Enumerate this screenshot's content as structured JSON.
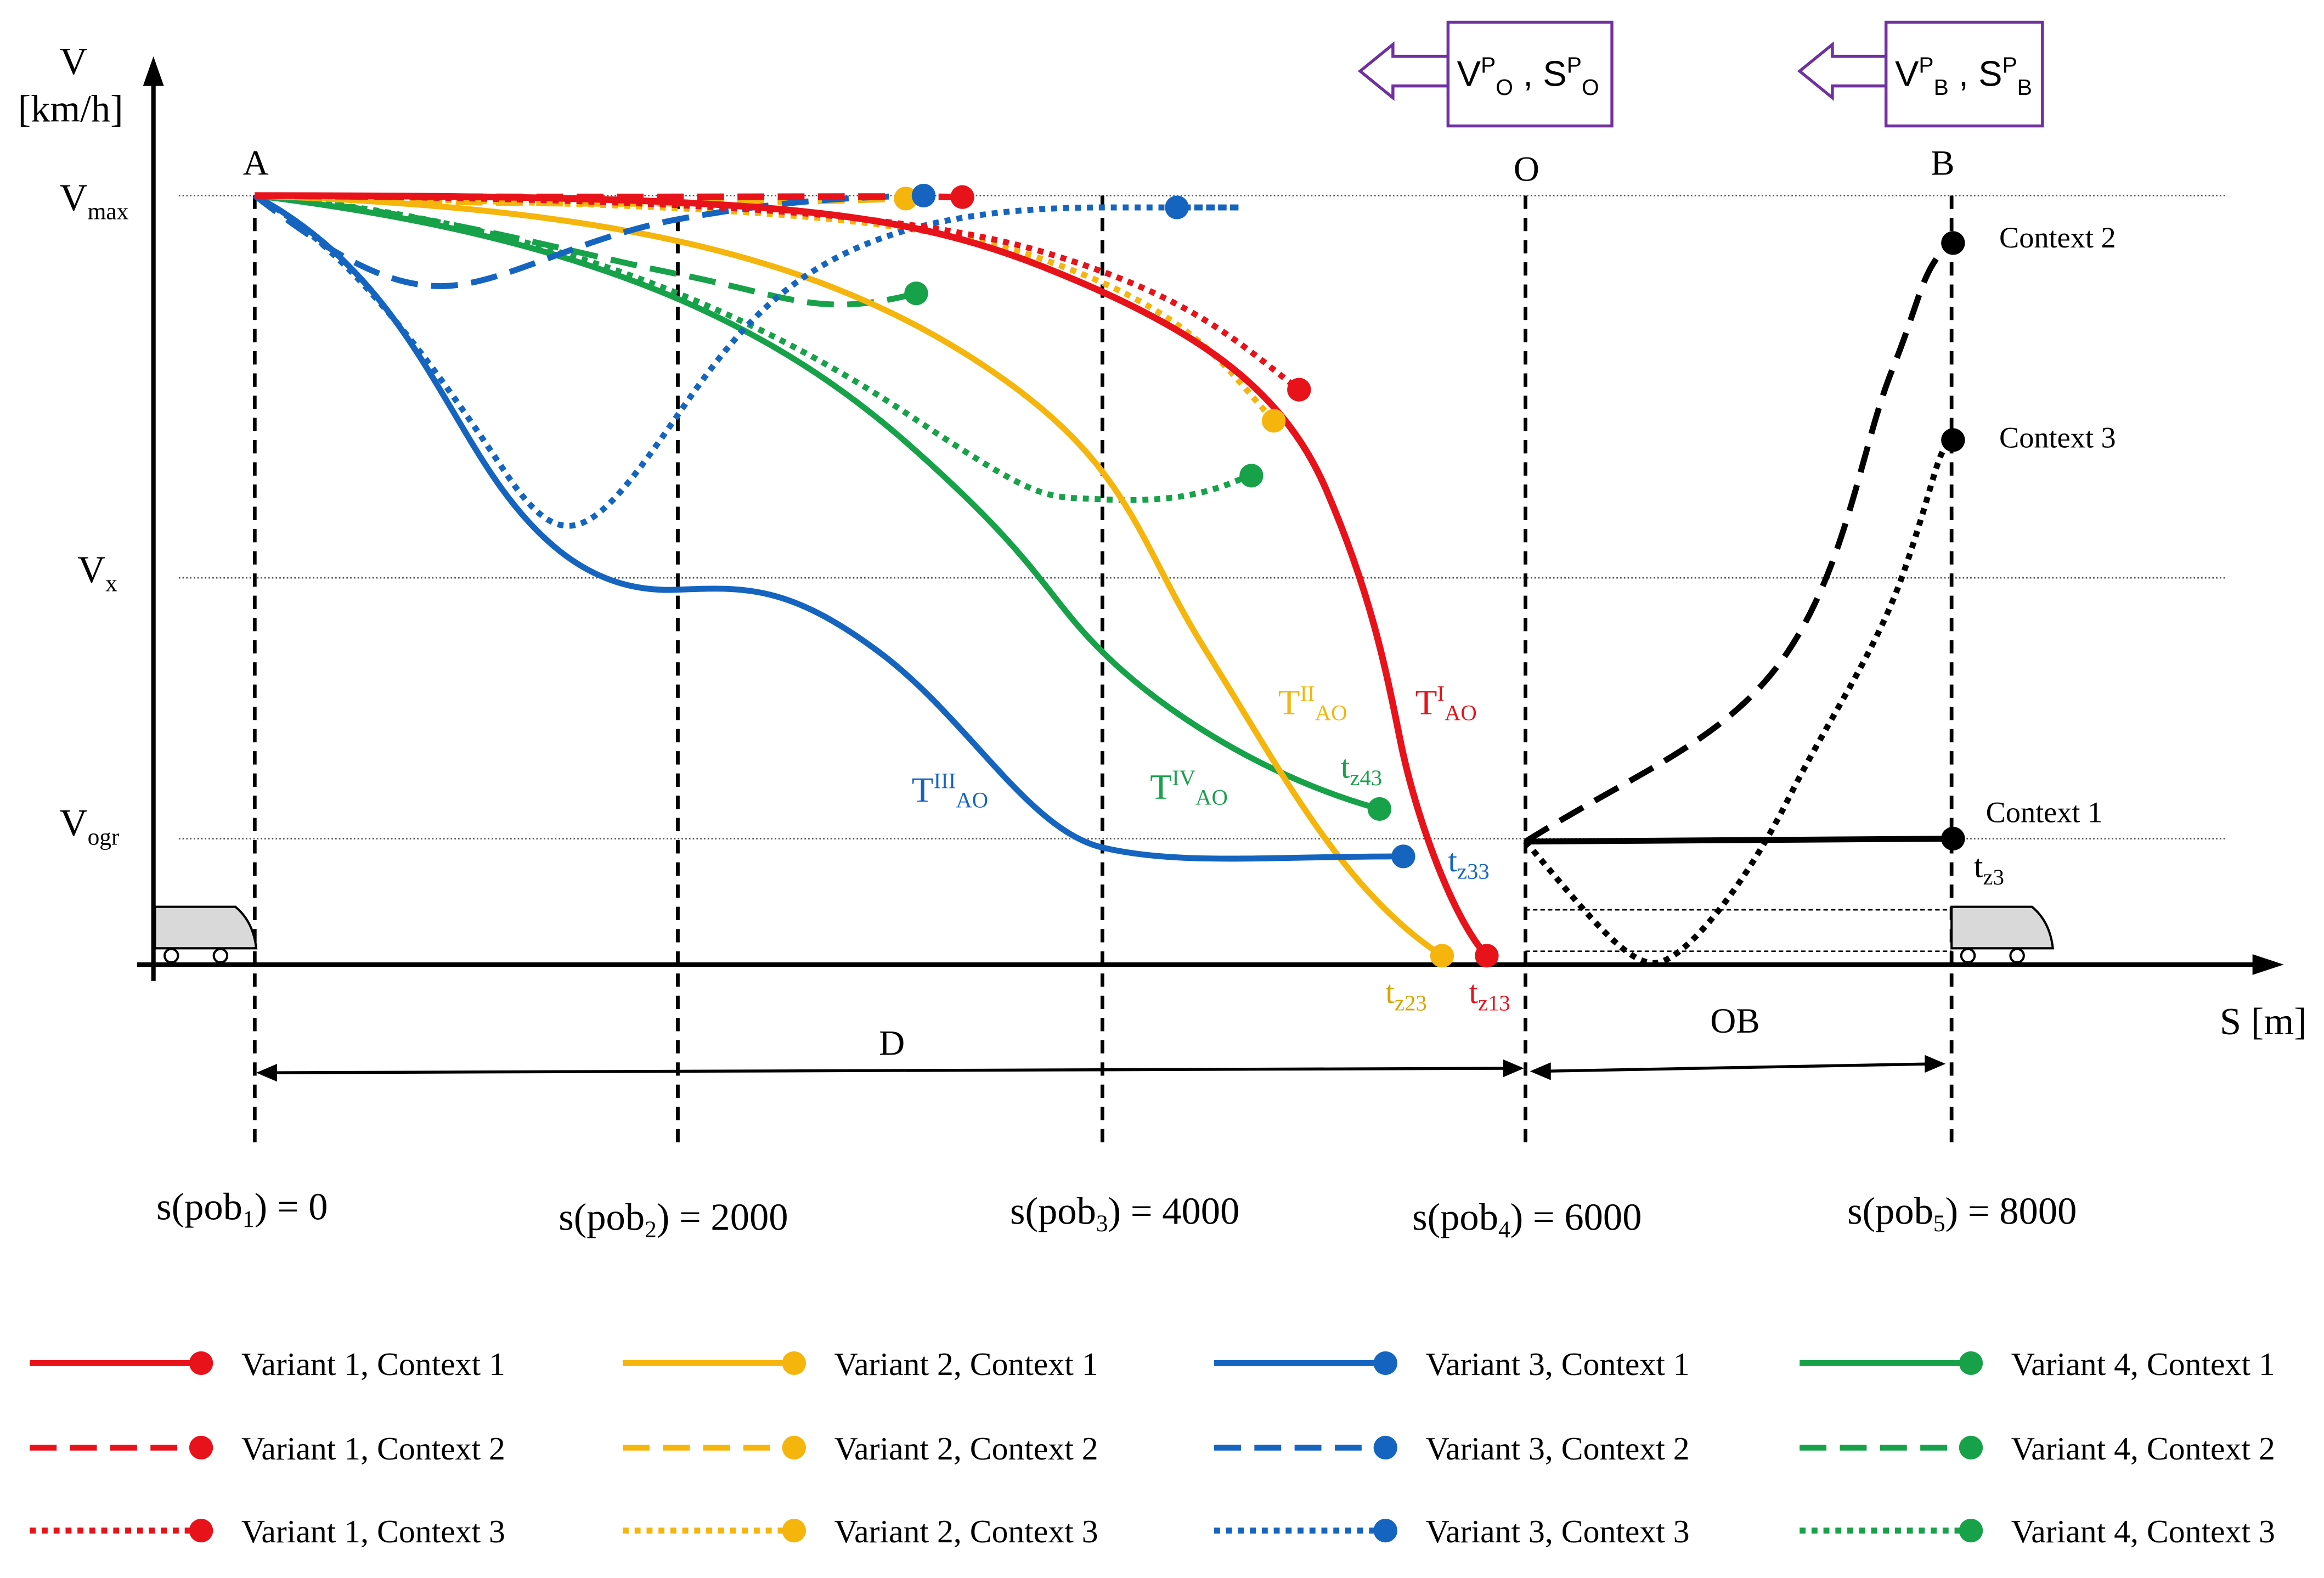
{
  "axes": {
    "y_label_line1": "V",
    "y_label_line2": "[km/h]",
    "x_label": "S [m]",
    "vmax": {
      "main": "V",
      "sub": "max"
    },
    "vx": {
      "main": "V",
      "sub": "x"
    },
    "vogr": {
      "main": "V",
      "sub": "ogr"
    }
  },
  "points": {
    "a": "A",
    "o": "O",
    "b": "B"
  },
  "positions": [
    {
      "pre": "s(pob",
      "sub": "1",
      "post": ") = 0"
    },
    {
      "pre": "s(pob",
      "sub": "2",
      "post": ") = 2000"
    },
    {
      "pre": "s(pob",
      "sub": "3",
      "post": ") = 4000"
    },
    {
      "pre": "s(pob",
      "sub": "4",
      "post": ") = 6000"
    },
    {
      "pre": "s(pob",
      "sub": "5",
      "post": ") = 8000"
    }
  ],
  "spans": {
    "d": "D",
    "ob": "OB"
  },
  "boxes": {
    "o_box": {
      "v": "V",
      "v_sup": "P",
      "v_sub": "O",
      "sep": " , ",
      "s": "S",
      "s_sup": "P",
      "s_sub": "O"
    },
    "b_box": {
      "v": "V",
      "v_sup": "P",
      "v_sub": "B",
      "sep": " , ",
      "s": "S",
      "s_sup": "P",
      "s_sub": "B"
    }
  },
  "contexts": {
    "c1": "Context 1",
    "c2": "Context 2",
    "c3": "Context 3",
    "tz3": {
      "main": "t",
      "sub": "z3"
    }
  },
  "curve_labels": {
    "t1": {
      "main": "T",
      "sup": "I",
      "sub": "AO"
    },
    "t2": {
      "main": "T",
      "sup": "II",
      "sub": "AO"
    },
    "t3": {
      "main": "T",
      "sup": "III",
      "sub": "AO"
    },
    "t4": {
      "main": "T",
      "sup": "IV",
      "sub": "AO"
    },
    "tz13": {
      "main": "t",
      "sub": "z13"
    },
    "tz23": {
      "main": "t",
      "sub": "z23"
    },
    "tz33": {
      "main": "t",
      "sub": "z33"
    },
    "tz43": {
      "main": "t",
      "sub": "z43"
    }
  },
  "colors": {
    "variant1": "#e8121a",
    "variant2": "#f5b50c",
    "variant3": "#1565c0",
    "variant4": "#17a24a",
    "black": "#000000",
    "box_border": "#7030a0"
  },
  "legend": [
    [
      "Variant 1, Context 1",
      "Variant 2, Context 1",
      "Variant 3, Context 1",
      "Variant 4, Context 1"
    ],
    [
      "Variant 1, Context 2",
      "Variant 2, Context 2",
      "Variant 3, Context 2",
      "Variant 4, Context 2"
    ],
    [
      "Variant 1, Context 3",
      "Variant 2, Context 3",
      "Variant 3, Context 3",
      "Variant 4, Context 3"
    ]
  ]
}
